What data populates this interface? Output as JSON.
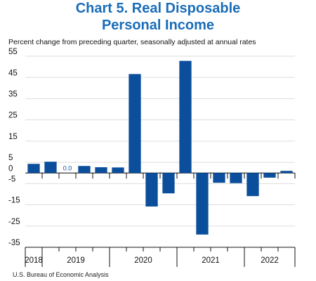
{
  "chart_data": {
    "type": "bar",
    "title": "Chart 5. Real Disposable Personal Income",
    "subtitle": "Percent change from preceding quarter, seasonally adjusted at annual rates",
    "source": "U.S. Bureau of Economic Analysis",
    "categories": [
      "2018",
      "2019",
      null,
      null,
      null,
      "2020",
      null,
      null,
      null,
      "2021",
      null,
      null,
      null,
      "2022",
      null,
      null
    ],
    "values": [
      4.3,
      5.3,
      0.0,
      3.3,
      2.7,
      2.6,
      46.6,
      -15.8,
      -9.6,
      52.8,
      -29.0,
      -4.6,
      -4.8,
      -10.9,
      -2.2,
      1.0
    ],
    "value_labels": [
      null,
      null,
      "0.0",
      null,
      null,
      null,
      null,
      null,
      null,
      null,
      null,
      null,
      null,
      null,
      null,
      null
    ],
    "color": "#0b4f9c",
    "ylim": [
      -35,
      55
    ],
    "yticks": [
      55,
      45,
      35,
      25,
      15,
      5,
      0,
      -5,
      -15,
      -25,
      -35
    ],
    "grid": true
  }
}
